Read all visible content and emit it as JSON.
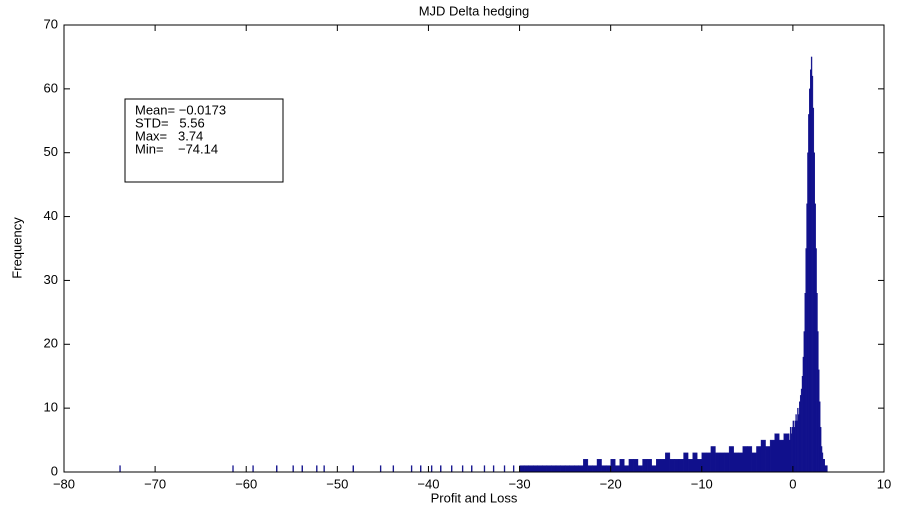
{
  "chart_data": {
    "type": "histogram",
    "title": "MJD Delta hedging",
    "x_label": "Profit and Loss",
    "y_label": "Frequency",
    "color": "#10108c",
    "bins": [
      -73.9,
      -73.8,
      -61.5,
      -61.4,
      -59.3,
      -59.2,
      -56.7,
      -56.6,
      -54.9,
      -54.8,
      -53.9,
      -53.8,
      -52.3,
      -52.2,
      -51.5,
      -51.4,
      -48.3,
      -48.2,
      -45.3,
      -45.2,
      -43.9,
      -43.8,
      -41.9,
      -41.8,
      -40.9,
      -40.8,
      -39.7,
      -39.6,
      -38.7,
      -38.6,
      -37.5,
      -37.4,
      -36.3,
      -36.2,
      -35.3,
      -35.2,
      -33.9,
      -33.8,
      -32.9,
      -32.8,
      -31.7,
      -31.6,
      -30.7,
      -30.6,
      -30,
      -29.5,
      -29,
      -28.5,
      -28,
      -27.5,
      -27,
      -26.5,
      -26,
      -25.5,
      -25,
      -24.5,
      -24,
      -23.5,
      -23,
      -22.5,
      -22,
      -21.5,
      -21,
      -20.5,
      -20,
      -19.5,
      -19,
      -18.5,
      -18,
      -17.5,
      -17,
      -16.5,
      -16,
      -15.5,
      -15,
      -14.5,
      -14,
      -13.5,
      -13,
      -12.5,
      -12,
      -11.5,
      -11,
      -10.5,
      -10,
      -9.5,
      -9,
      -8.5,
      -8,
      -7.5,
      -7,
      -6.5,
      -6,
      -5.5,
      -5,
      -4.5,
      -4,
      -3.5,
      -3,
      -2.5,
      -2,
      -1.5,
      -1,
      -0.5,
      -0.4,
      -0.3,
      -0.2,
      -0.1,
      0,
      0.1,
      0.2,
      0.3,
      0.4,
      0.5,
      0.6,
      0.7,
      0.8,
      0.9,
      1.0,
      1.1,
      1.2,
      1.3,
      1.4,
      1.5,
      1.6,
      1.7,
      1.8,
      1.9,
      2.0,
      2.1,
      2.2,
      2.3,
      2.4,
      2.5,
      2.6,
      2.7,
      2.8,
      2.9,
      3.0,
      3.1,
      3.2,
      3.3,
      3.4,
      3.5,
      3.6,
      3.7,
      3.74
    ],
    "values": [
      1,
      0,
      1,
      0,
      1,
      0,
      1,
      0,
      1,
      0,
      1,
      0,
      1,
      0,
      1,
      0,
      1,
      0,
      1,
      0,
      1,
      0,
      1,
      0,
      1,
      0,
      1,
      0,
      1,
      0,
      1,
      0,
      1,
      0,
      1,
      0,
      1,
      0,
      1,
      0,
      1,
      0,
      1,
      0,
      1,
      1,
      1,
      1,
      1,
      1,
      1,
      1,
      1,
      1,
      1,
      1,
      1,
      1,
      2,
      1,
      1,
      2,
      1,
      1,
      2,
      1,
      2,
      1,
      2,
      2,
      1,
      2,
      2,
      1,
      2,
      2,
      3,
      2,
      2,
      2,
      3,
      2,
      3,
      2,
      3,
      3,
      4,
      3,
      3,
      3,
      4,
      3,
      3,
      4,
      4,
      3,
      4,
      5,
      4,
      5,
      6,
      5,
      6,
      6,
      5,
      7,
      6,
      7,
      8,
      7,
      8,
      9,
      8,
      10,
      9,
      11,
      12,
      13,
      15,
      18,
      22,
      28,
      35,
      42,
      50,
      56,
      60,
      63,
      65,
      62,
      57,
      50,
      42,
      35,
      28,
      22,
      16,
      11,
      7,
      4,
      3,
      2,
      2,
      1,
      1,
      1
    ],
    "xlim": [
      -80,
      10
    ],
    "ylim": [
      0,
      70
    ],
    "xticks": [
      {
        "value": -80,
        "label": "−80"
      },
      {
        "value": -70,
        "label": "−70"
      },
      {
        "value": -60,
        "label": "−60"
      },
      {
        "value": -50,
        "label": "−50"
      },
      {
        "value": -40,
        "label": "−40"
      },
      {
        "value": -30,
        "label": "−30"
      },
      {
        "value": -20,
        "label": "−20"
      },
      {
        "value": -10,
        "label": "−10"
      },
      0,
      10
    ],
    "yticks": [
      0,
      10,
      20,
      30,
      40,
      50,
      60,
      70
    ],
    "annotations": [
      "Mean= −0.0173",
      "STD=   5.56",
      "Max=   3.74",
      "Min=    −74.14"
    ]
  }
}
